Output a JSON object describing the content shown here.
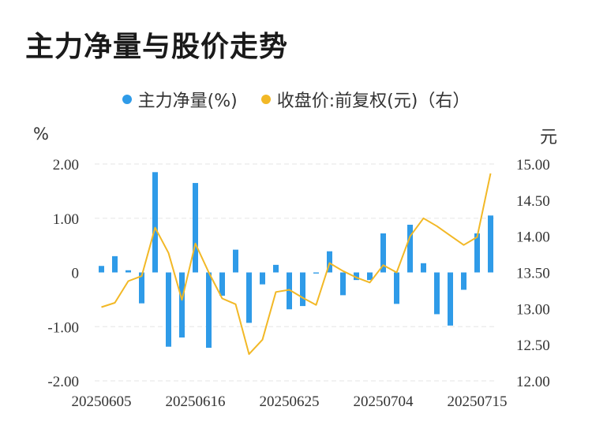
{
  "title": "主力净量与股价走势",
  "legend": {
    "bar_label": "主力净量(%)",
    "line_label": "收盘价:前复权(元)（右）"
  },
  "units": {
    "left": "%",
    "right": "元"
  },
  "colors": {
    "bar": "#2f9be8",
    "line": "#f2b826",
    "grid": "#e6e6e6"
  },
  "chart_data": {
    "type": "bar+line",
    "title": "主力净量与股价走势",
    "x_tick_labels": [
      "20250605",
      "20250616",
      "20250625",
      "20250704",
      "20250715"
    ],
    "y_left": {
      "label": "%",
      "range": [
        -2,
        2
      ],
      "ticks": [
        "2.00",
        "1.00",
        "0",
        "-1.00",
        "-2.00"
      ]
    },
    "y_right": {
      "label": "元",
      "range": [
        12,
        15
      ],
      "ticks": [
        "15.00",
        "14.50",
        "14.00",
        "13.50",
        "13.00",
        "12.50",
        "12.00"
      ]
    },
    "grid": true,
    "legend_position": "top",
    "series": [
      {
        "name": "主力净量(%)",
        "type": "bar",
        "axis": "left",
        "values": [
          0.12,
          0.3,
          0.04,
          -0.57,
          1.85,
          -1.37,
          -1.2,
          1.65,
          -1.39,
          -0.43,
          0.42,
          -0.93,
          -0.22,
          0.14,
          -0.68,
          -0.62,
          -0.02,
          0.39,
          -0.42,
          -0.14,
          -0.14,
          0.72,
          -0.58,
          0.88,
          0.17,
          -0.77,
          -0.98,
          -0.32,
          0.72,
          1.05
        ]
      },
      {
        "name": "收盘价:前复权(元)（右）",
        "type": "line",
        "axis": "right",
        "values": [
          13.02,
          13.08,
          13.38,
          13.45,
          14.12,
          13.77,
          13.12,
          13.9,
          13.5,
          13.14,
          13.06,
          12.37,
          12.57,
          13.23,
          13.26,
          13.15,
          13.05,
          13.63,
          13.52,
          13.43,
          13.36,
          13.6,
          13.5,
          14.0,
          14.25,
          14.14,
          14.01,
          13.88,
          13.99,
          14.87
        ]
      }
    ]
  }
}
